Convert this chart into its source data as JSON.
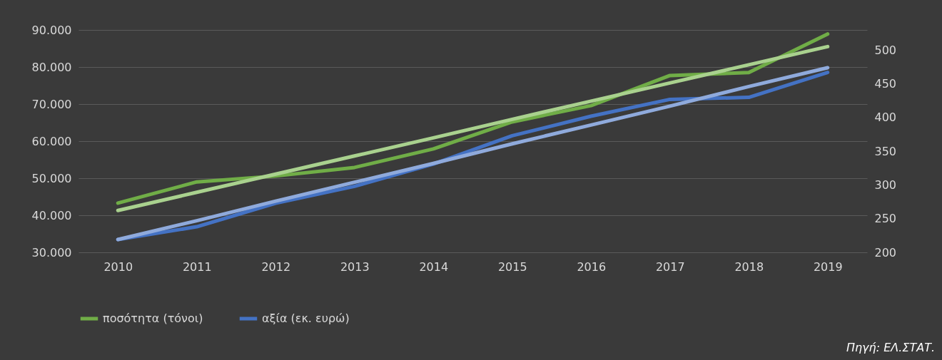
{
  "chart_data": {
    "type": "line",
    "categories": [
      "2010",
      "2011",
      "2012",
      "2013",
      "2014",
      "2015",
      "2016",
      "2017",
      "2018",
      "2019"
    ],
    "series": [
      {
        "name": "ποσότητα (τόνοι)",
        "color": "#70ad47",
        "axis": "y",
        "values": [
          43300,
          49000,
          50600,
          52900,
          57900,
          65200,
          69600,
          77700,
          78500,
          88900
        ]
      },
      {
        "name": "αξία (εκ. ευρώ)",
        "color": "#4472c4",
        "axis": "y2",
        "values": [
          219,
          238,
          273,
          298,
          331,
          373,
          402,
          427,
          430,
          467
        ]
      },
      {
        "type": "line",
        "color": "#a9d18e",
        "axis": "y",
        "values": [
          41300,
          46200,
          51100,
          56000,
          60900,
          65900,
          70800,
          75700,
          80600,
          85500
        ]
      },
      {
        "type": "line",
        "color": "#8faadc",
        "axis": "y2",
        "values": [
          219,
          247,
          276,
          304,
          332,
          361,
          389,
          417,
          446,
          474
        ]
      }
    ],
    "ylim": [
      30000,
      90000
    ],
    "yticks": [
      {
        "value": 30000,
        "label": "30.000"
      },
      {
        "value": 40000,
        "label": "40.000"
      },
      {
        "value": 50000,
        "label": "50.000"
      },
      {
        "value": 60000,
        "label": "60.000"
      },
      {
        "value": 70000,
        "label": "70.000"
      },
      {
        "value": 80000,
        "label": "80.000"
      },
      {
        "value": 90000,
        "label": "90.000"
      }
    ],
    "y2lim": [
      200,
      530
    ],
    "y2ticks": [
      200,
      250,
      300,
      350,
      400,
      450,
      500
    ],
    "grid": "y",
    "legend": "bottom",
    "annotations": [
      "Πηγή: ΕΛ.ΣΤΑΤ."
    ]
  }
}
